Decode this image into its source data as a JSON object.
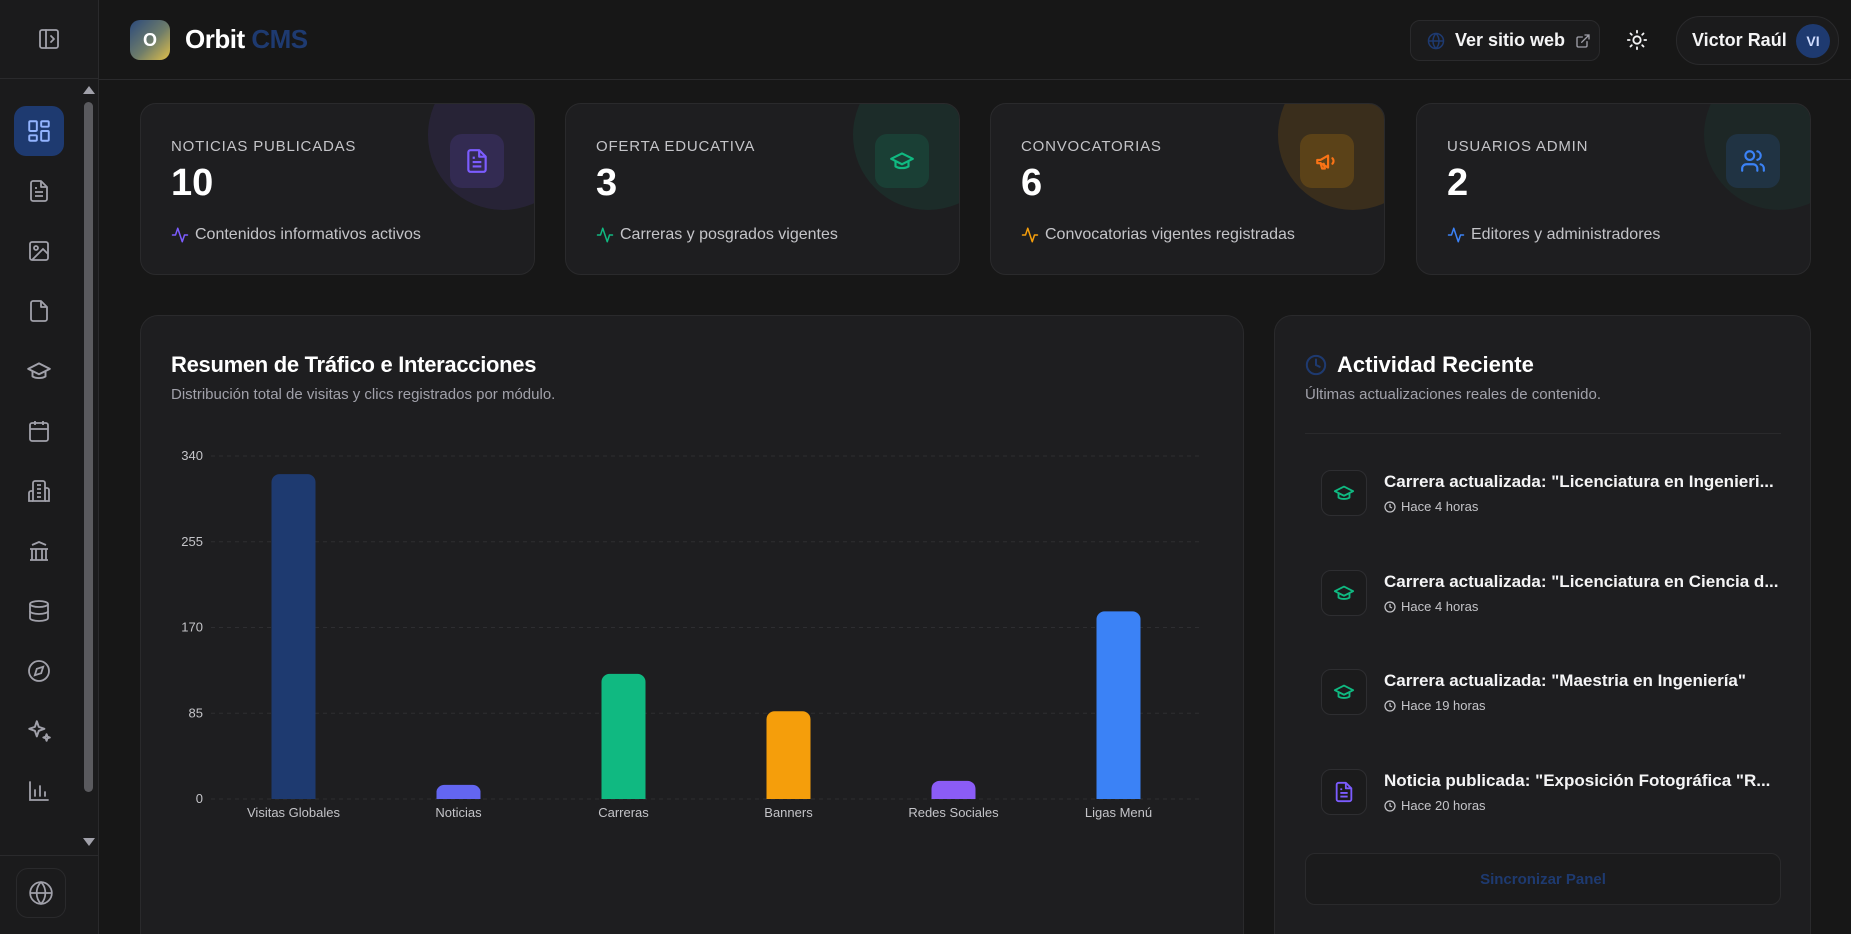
{
  "header": {
    "logo_letter": "O",
    "brand_main": "Orbit",
    "brand_suffix": "CMS",
    "visit_site_label": "Ver sitio web",
    "user_name": "Victor Raúl",
    "user_initials": "VI"
  },
  "sidebar": {
    "items": [
      {
        "icon": "dashboard-icon",
        "active": true
      },
      {
        "icon": "news-document-icon"
      },
      {
        "icon": "image-icon"
      },
      {
        "icon": "file-icon"
      },
      {
        "icon": "graduation-cap-icon"
      },
      {
        "icon": "calendar-icon"
      },
      {
        "icon": "building-icon"
      },
      {
        "icon": "institution-icon"
      },
      {
        "icon": "database-icon"
      },
      {
        "icon": "compass-icon"
      },
      {
        "icon": "sparkles-icon"
      },
      {
        "icon": "bar-chart-icon"
      }
    ],
    "bottom_icon": "globe-icon"
  },
  "stats": [
    {
      "label": "NOTICIAS PUBLICADAS",
      "value": "10",
      "desc": "Contenidos informativos activos",
      "color": "#7c5cff",
      "icon": "document-icon"
    },
    {
      "label": "OFERTA EDUCATIVA",
      "value": "3",
      "desc": "Carreras y posgrados vigentes",
      "color": "#10b981",
      "icon": "graduation-cap-icon"
    },
    {
      "label": "CONVOCATORIAS",
      "value": "6",
      "desc": "Convocatorias vigentes registradas",
      "color": "#f59e0b",
      "icon": "megaphone-icon"
    },
    {
      "label": "USUARIOS ADMIN",
      "value": "2",
      "desc": "Editores y administradores",
      "color": "#3b82f6",
      "icon": "users-icon"
    }
  ],
  "traffic": {
    "title": "Resumen de Tráfico e Interacciones",
    "subtitle": "Distribución total de visitas y clics registrados por módulo."
  },
  "chart_data": {
    "type": "bar",
    "categories": [
      "Visitas Globales",
      "Noticias",
      "Carreras",
      "Banners",
      "Redes Sociales",
      "Ligas Menú"
    ],
    "values": [
      322,
      14,
      124,
      87,
      18,
      186
    ],
    "colors": [
      "#1e3a70",
      "#6366f1",
      "#10b981",
      "#f59e0b",
      "#8b5cf6",
      "#3b82f6"
    ],
    "yticks": [
      0,
      85,
      170,
      255,
      340
    ],
    "ylim": [
      0,
      340
    ],
    "grid": true,
    "title": "",
    "xlabel": "",
    "ylabel": ""
  },
  "activity": {
    "title": "Actividad Reciente",
    "subtitle": "Últimas actualizaciones reales de contenido.",
    "items": [
      {
        "icon": "graduation-cap-icon",
        "text": "Carrera actualizada: \"Licenciatura en Ingenieri...",
        "time": "Hace 4 horas",
        "color": "#10b981"
      },
      {
        "icon": "graduation-cap-icon",
        "text": "Carrera actualizada: \"Licenciatura en Ciencia d...",
        "time": "Hace 4 horas",
        "color": "#10b981"
      },
      {
        "icon": "graduation-cap-icon",
        "text": "Carrera actualizada: \"Maestria en Ingeniería\"",
        "time": "Hace 19 horas",
        "color": "#10b981"
      },
      {
        "icon": "document-icon",
        "text": "Noticia publicada: \"Exposición Fotográfica \"R...",
        "time": "Hace 20 horas",
        "color": "#7c5cff"
      }
    ],
    "sync_label": "Sincronizar Panel"
  }
}
